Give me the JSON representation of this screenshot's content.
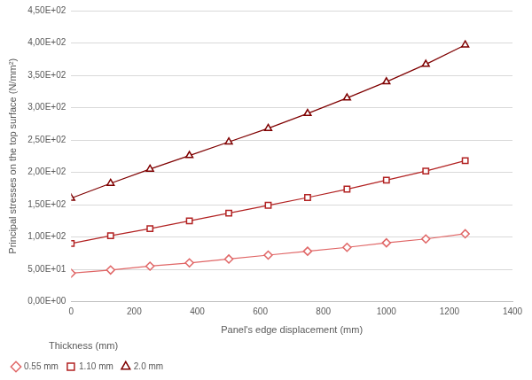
{
  "chart_data": {
    "type": "line",
    "x_label": "Panel's edge displacement (mm)",
    "y_label": "Principal stresses on the top surface (N/mm²)",
    "legend_title": "Thickness (mm)",
    "legend": "bottom",
    "grid": true,
    "x": [
      0,
      125,
      250,
      375,
      500,
      625,
      750,
      875,
      1000,
      1125,
      1250
    ],
    "series": [
      {
        "name": "0.55 mm",
        "color": "#e06666",
        "marker": "diamond",
        "line_style": "solid",
        "values": [
          44,
          49,
          55,
          60,
          66,
          72,
          78,
          84,
          91,
          97,
          105
        ]
      },
      {
        "name": "1.10 mm",
        "color": "#b22222",
        "marker": "square",
        "line_style": "solid",
        "values": [
          90,
          102,
          113,
          125,
          137,
          149,
          161,
          174,
          188,
          202,
          218
        ]
      },
      {
        "name": "2.0 mm",
        "color": "#7f0000",
        "marker": "triangle",
        "line_style": "solid",
        "values": [
          160,
          183,
          205,
          226,
          247,
          268,
          291,
          315,
          340,
          367,
          397
        ]
      }
    ],
    "xlim": [
      0,
      1400
    ],
    "xticks": [
      0,
      200,
      400,
      600,
      800,
      1000,
      1200,
      1400
    ],
    "ylim": [
      0,
      450
    ],
    "yticks": [
      {
        "value": 0,
        "label": "0,00E+00"
      },
      {
        "value": 50,
        "label": "5,00E+01"
      },
      {
        "value": 100,
        "label": "1,00E+02"
      },
      {
        "value": 150,
        "label": "1,50E+02"
      },
      {
        "value": 200,
        "label": "2,00E+02"
      },
      {
        "value": 250,
        "label": "2,50E+02"
      },
      {
        "value": 300,
        "label": "3,00E+02"
      },
      {
        "value": 350,
        "label": "3,50E+02"
      },
      {
        "value": 400,
        "label": "4,00E+02"
      },
      {
        "value": 450,
        "label": "4,50E+02"
      }
    ]
  }
}
